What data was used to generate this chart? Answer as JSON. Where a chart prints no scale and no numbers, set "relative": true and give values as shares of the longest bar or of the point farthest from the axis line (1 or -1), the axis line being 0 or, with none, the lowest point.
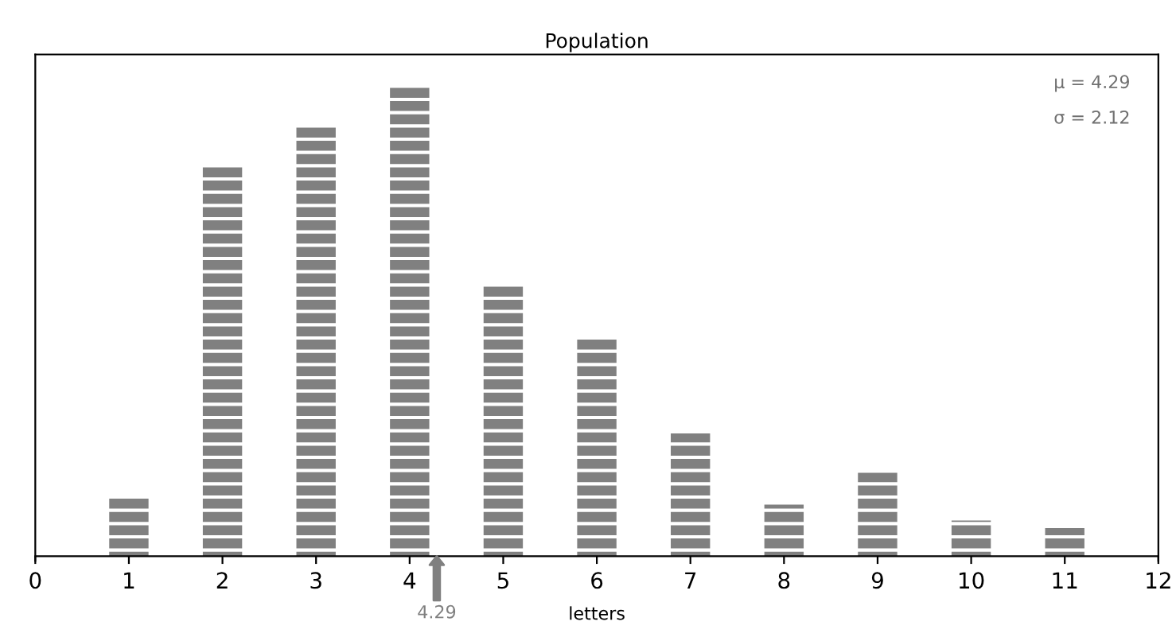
{
  "chart_data": {
    "type": "bar",
    "title": "Population",
    "xlabel": "letters",
    "x": [
      1,
      2,
      3,
      4,
      5,
      6,
      7,
      8,
      9,
      10,
      11
    ],
    "values": [
      0.127,
      0.833,
      0.916,
      1,
      0.579,
      0.462,
      0.262,
      0.11,
      0.178,
      0.076,
      0.06
    ],
    "color": "#808080",
    "relative": true,
    "xlim": [
      0,
      12
    ],
    "xticks": [
      0,
      1,
      2,
      3,
      4,
      5,
      6,
      7,
      8,
      9,
      10,
      11,
      12
    ],
    "annotations": [
      "μ = 4.29",
      "σ = 2.12",
      {
        "text": "4.29",
        "x": 4.29,
        "y": 0
      }
    ],
    "grid": false,
    "legend": false
  }
}
